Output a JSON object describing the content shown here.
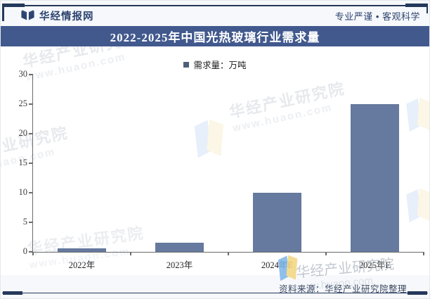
{
  "header": {
    "brand": "华经情报网",
    "slogan": "专业严谨 • 客观科学",
    "logo_icon": "huajing-book-logo"
  },
  "banner": {
    "title": "2022-2025年中国光热玻璃行业需求量"
  },
  "legend": {
    "label": "需求量：万吨",
    "swatch_color": "#4e5f78"
  },
  "chart_data": {
    "type": "bar",
    "categories": [
      "2022年",
      "2023年",
      "2024年E",
      "2025年E"
    ],
    "values": [
      0.6,
      1.5,
      10,
      25
    ],
    "series_name": "需求量：万吨",
    "title": "2022-2025年中国光热玻璃行业需求量",
    "xlabel": "",
    "ylabel": "",
    "ylim": [
      0,
      30
    ],
    "yticks": [
      0,
      5,
      10,
      15,
      20,
      25,
      30
    ],
    "grid": false,
    "legend_position": "top-center",
    "bar_color": "#66799e"
  },
  "footer": {
    "source": "资料来源：华经产业研究院整理"
  },
  "watermark": {
    "brand_text": "华经产业研究院",
    "site_text": "www.huaon.com"
  },
  "colors": {
    "banner_bg": "#42598e",
    "bar": "#66799e",
    "frame_line": "#25395c",
    "header_text": "#2e4470",
    "footer_text": "#3d4a63"
  }
}
